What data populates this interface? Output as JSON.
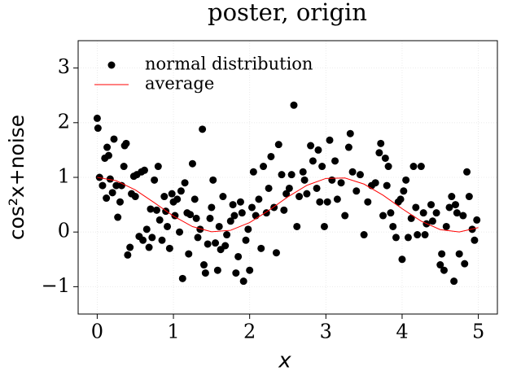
{
  "chart_data": {
    "type": "scatter",
    "title": "poster, origin",
    "xlabel": "x",
    "ylabel": "cos²x+noise",
    "xlim": [
      -0.25,
      5.25
    ],
    "ylim": [
      -1.5,
      3.5
    ],
    "xticks": [
      0,
      1,
      2,
      3,
      4,
      5
    ],
    "yticks": [
      {
        "value": -1,
        "label": "−1"
      },
      0,
      1,
      2,
      3
    ],
    "grid": true,
    "legend": "upper left",
    "series": [
      {
        "name": "normal distribution",
        "type": "scatter",
        "color": "#000000",
        "x": [
          0,
          0.01,
          0.03,
          0.07,
          0.1,
          0.12,
          0.13,
          0.15,
          0.17,
          0.2,
          0.22,
          0.25,
          0.27,
          0.3,
          0.32,
          0.35,
          0.36,
          0.38,
          0.4,
          0.43,
          0.45,
          0.48,
          0.5,
          0.52,
          0.55,
          0.58,
          0.6,
          0.62,
          0.65,
          0.68,
          0.7,
          0.72,
          0.75,
          0.78,
          0.8,
          0.82,
          0.85,
          0.88,
          0.9,
          0.92,
          0.95,
          0.98,
          1.0,
          1.02,
          1.05,
          1.08,
          1.1,
          1.12,
          1.15,
          1.18,
          1.2,
          1.22,
          1.25,
          1.28,
          1.3,
          1.32,
          1.35,
          1.38,
          1.4,
          1.42,
          1.45,
          1.48,
          1.5,
          1.52,
          1.55,
          1.58,
          1.6,
          1.62,
          1.65,
          1.68,
          1.7,
          1.75,
          1.78,
          1.8,
          1.82,
          1.85,
          1.88,
          1.9,
          1.92,
          1.95,
          1.98,
          2.0,
          2.03,
          2.05,
          2.08,
          2.12,
          2.15,
          2.18,
          2.22,
          2.25,
          2.28,
          2.32,
          2.35,
          2.38,
          2.42,
          2.45,
          2.48,
          2.52,
          2.55,
          2.58,
          2.62,
          2.65,
          2.7,
          2.72,
          2.75,
          2.8,
          2.83,
          2.88,
          2.9,
          2.92,
          2.95,
          2.98,
          3.02,
          3.05,
          3.08,
          3.12,
          3.15,
          3.2,
          3.25,
          3.3,
          3.32,
          3.35,
          3.4,
          3.45,
          3.5,
          3.55,
          3.6,
          3.65,
          3.7,
          3.72,
          3.75,
          3.78,
          3.8,
          3.82,
          3.85,
          3.88,
          3.92,
          3.95,
          3.98,
          4.0,
          4.02,
          4.05,
          4.08,
          4.12,
          4.15,
          4.18,
          4.2,
          4.25,
          4.28,
          4.3,
          4.32,
          4.38,
          4.4,
          4.45,
          4.5,
          4.52,
          4.55,
          4.58,
          4.62,
          4.65,
          4.68,
          4.7,
          4.72,
          4.75,
          4.8,
          4.82,
          4.85,
          4.88,
          4.92,
          4.95,
          4.98
        ],
        "values": [
          2.08,
          1.9,
          1.0,
          0.85,
          1.35,
          0.62,
          1.55,
          1.4,
          0.97,
          0.72,
          1.7,
          0.85,
          0.27,
          0.55,
          0.85,
          1.2,
          1.58,
          1.62,
          -0.42,
          -0.28,
          0.7,
          1.02,
          0.65,
          1.05,
          -0.08,
          1.1,
          -0.15,
          1.13,
          0.05,
          -0.28,
          0.42,
          -0.1,
          0.95,
          0.4,
          1.2,
          0.22,
          -0.15,
          0.65,
          0.38,
          0.1,
          -0.3,
          0.7,
          0.55,
          0.3,
          0.6,
          0.0,
          0.75,
          -0.85,
          0.9,
          0.35,
          -0.4,
          0.32,
          1.25,
          0.6,
          0.25,
          -0.1,
          0.05,
          1.88,
          -0.6,
          -0.75,
          -0.22,
          0.25,
          0.45,
          0.95,
          -0.2,
          -0.7,
          0.1,
          -0.32,
          0.65,
          -0.25,
          -0.05,
          0.2,
          0.5,
          0.3,
          -0.75,
          -0.45,
          0.55,
          0.35,
          -0.9,
          -0.15,
          0.05,
          -0.7,
          0.45,
          1.1,
          0.3,
          0.6,
          -0.3,
          1.2,
          0.35,
          0.8,
          1.38,
          0.45,
          -0.38,
          1.6,
          1.05,
          0.4,
          0.7,
          0.8,
          1.05,
          2.32,
          0.1,
          0.65,
          1.1,
          0.95,
          0.7,
          1.58,
          1.3,
          0.8,
          1.5,
          0.55,
          1.2,
          0.1,
          0.55,
          1.68,
          0.95,
          1.3,
          0.6,
          0.9,
          0.3,
          1.55,
          1.8,
          1.1,
          0.75,
          1.05,
          -0.05,
          0.55,
          0.85,
          0.9,
          1.45,
          1.62,
          0.3,
          1.35,
          0.85,
          1.2,
          0.35,
          0.1,
          -0.1,
          0.55,
          0.6,
          -0.5,
          0.75,
          0.95,
          -0.1,
          0.25,
          1.2,
          0.45,
          -0.05,
          1.2,
          0.35,
          -0.05,
          0.15,
          0.5,
          0.2,
          0.35,
          -0.6,
          -0.4,
          -0.7,
          0.1,
          0.45,
          0.65,
          -0.9,
          0.5,
          0.35,
          -0.4,
          0.3,
          -0.58,
          1.1,
          0.65,
          0.05,
          -0.15,
          0.22
        ]
      },
      {
        "name": "average",
        "type": "line",
        "color": "#ff0000",
        "x": [
          0,
          0.25,
          0.5,
          0.75,
          1,
          1.25,
          1.5,
          1.75,
          2,
          2.25,
          2.5,
          2.75,
          3,
          3.25,
          3.5,
          3.75,
          4,
          4.25,
          4.5,
          4.75,
          5
        ],
        "values": [
          1.0,
          0.9388,
          0.7702,
          0.5354,
          0.2919,
          0.0994,
          0.005,
          0.0318,
          0.1732,
          0.3946,
          0.6418,
          0.8543,
          0.9801,
          0.9882,
          0.877,
          0.6734,
          0.4272,
          0.199,
          0.0444,
          0.0014,
          0.0805
        ]
      }
    ]
  }
}
